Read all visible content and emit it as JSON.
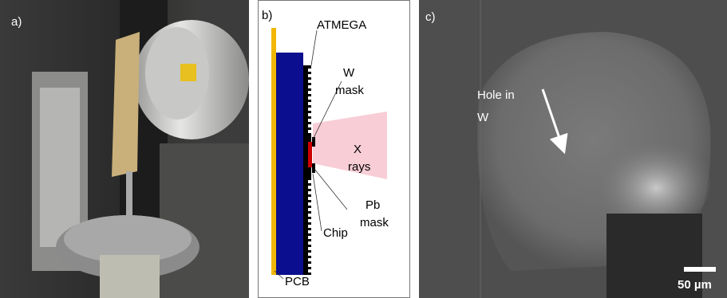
{
  "panels": [
    {
      "label": "a)"
    },
    {
      "label": "b)",
      "labels": {
        "atmega": "ATMEGA",
        "w_mask": [
          "W",
          "mask"
        ],
        "x_rays": [
          "X",
          "rays"
        ],
        "pb_mask": [
          "Pb",
          "mask"
        ],
        "chip": "Chip",
        "pcb": "PCB"
      }
    },
    {
      "label": "c)",
      "hole_label": [
        "Hole in",
        "W"
      ],
      "scale_bar": "50 µm"
    }
  ]
}
